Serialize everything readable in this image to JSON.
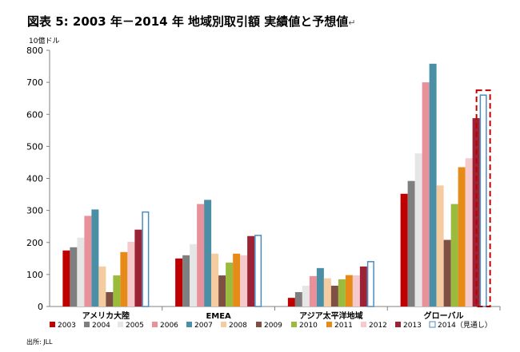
{
  "title": "図表 5: 2003 年－2014 年  地域別取引額  実績値と予想値",
  "title_mark": "↵",
  "unit": "10億ドル",
  "source": "出所: JLL",
  "chart_data": {
    "type": "bar",
    "title": "図表 5: 2003 年－2014 年  地域別取引額  実績値と予想値",
    "ylabel": "10億ドル",
    "ylim": [
      0,
      800
    ],
    "yticks": [
      0,
      100,
      200,
      300,
      400,
      500,
      600,
      700,
      800
    ],
    "grid": false,
    "legend_position": "bottom",
    "categories": [
      "アメリカ大陸",
      "EMEA",
      "アジア太平洋地域",
      "グローバル"
    ],
    "series": [
      {
        "name": "2003",
        "color": "#c00000",
        "values": [
          175,
          150,
          27,
          352
        ]
      },
      {
        "name": "2004",
        "color": "#7f7f7f",
        "values": [
          185,
          160,
          45,
          392
        ]
      },
      {
        "name": "2005",
        "color": "#e6e6e6",
        "values": [
          215,
          195,
          65,
          478
        ]
      },
      {
        "name": "2006",
        "color": "#e8919b",
        "values": [
          283,
          320,
          95,
          700
        ]
      },
      {
        "name": "2007",
        "color": "#4b8fa6",
        "values": [
          303,
          333,
          120,
          758
        ]
      },
      {
        "name": "2008",
        "color": "#f5cba0",
        "values": [
          125,
          165,
          88,
          378
        ]
      },
      {
        "name": "2009",
        "color": "#7f4f44",
        "values": [
          45,
          97,
          65,
          208
        ]
      },
      {
        "name": "2010",
        "color": "#9bbb3c",
        "values": [
          97,
          137,
          85,
          320
        ]
      },
      {
        "name": "2011",
        "color": "#e68a18",
        "values": [
          170,
          165,
          98,
          435
        ]
      },
      {
        "name": "2012",
        "color": "#f6c9cc",
        "values": [
          202,
          160,
          97,
          463
        ]
      },
      {
        "name": "2013",
        "color": "#9b2335",
        "values": [
          240,
          220,
          125,
          588
        ]
      },
      {
        "name": "2014（見通し）",
        "color": "#ffffff",
        "stroke": "#4a8cc0",
        "values": [
          295,
          222,
          140,
          660
        ]
      }
    ],
    "annotations": [
      "グローバル 2014（見通し） highlighted with red dashed box"
    ]
  }
}
